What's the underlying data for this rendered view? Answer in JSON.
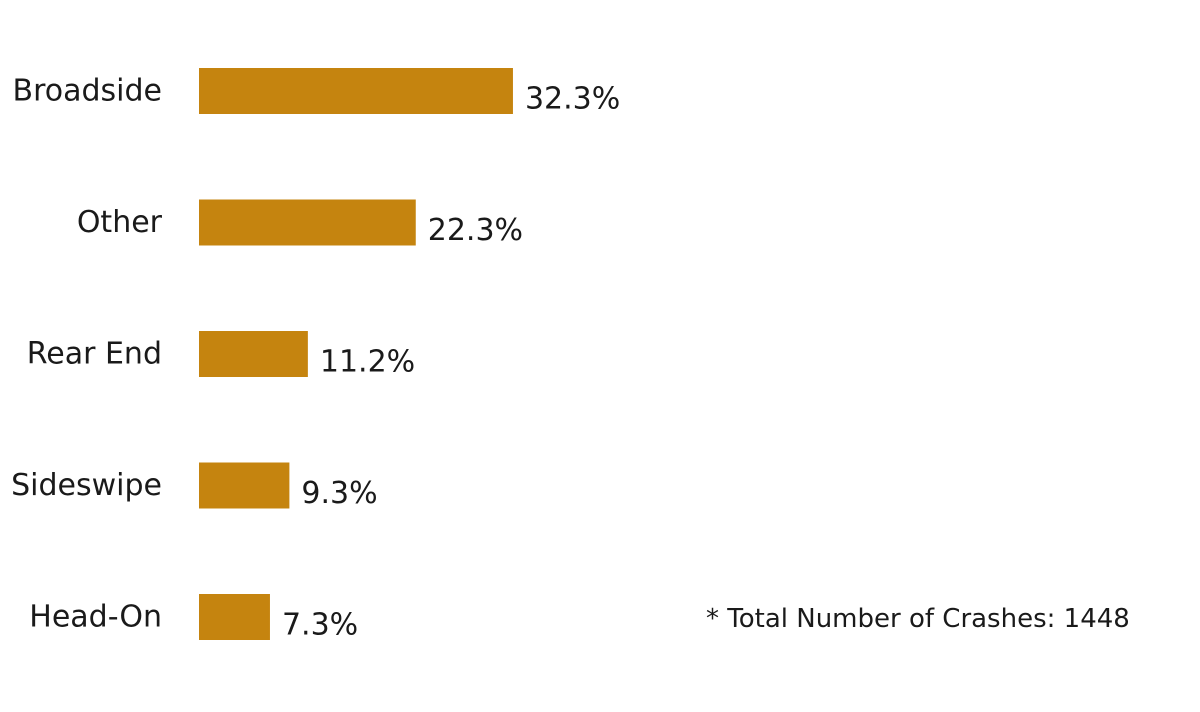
{
  "chart_data": {
    "type": "bar",
    "orientation": "horizontal",
    "categories": [
      "Broadside",
      "Other",
      "Rear End",
      "Sideswipe",
      "Head-On"
    ],
    "values": [
      32.3,
      22.3,
      11.2,
      9.3,
      7.3
    ],
    "value_labels": [
      "32.3%",
      "22.3%",
      "11.2%",
      "9.3%",
      "7.3%"
    ],
    "unit": "%",
    "bar_color": "#C5840F",
    "xlim": [
      0,
      100
    ],
    "grid": false,
    "legend": "none"
  },
  "note": "* Total Number of Crashes: 1448"
}
